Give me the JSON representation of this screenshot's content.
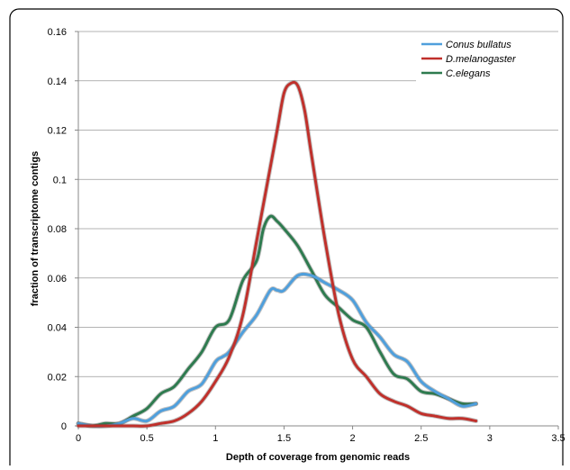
{
  "chart_data": {
    "type": "line",
    "title": "",
    "xlabel": "Depth of coverage from genomic reads",
    "ylabel": "fraction of  transcriptome contigs",
    "xlim": [
      0,
      3.5
    ],
    "ylim": [
      0,
      0.16
    ],
    "xticks": [
      "0",
      "0.5",
      "1",
      "1.5",
      "2",
      "2.5",
      "3",
      "3.5"
    ],
    "yticks": [
      "0",
      "0.02",
      "0.04",
      "0.06",
      "0.08",
      "0.1",
      "0.12",
      "0.14",
      "0.16"
    ],
    "grid": "horizontal",
    "legend_position": "top-right",
    "series": [
      {
        "name": "Conus bullatus",
        "color": "#4f9fdc",
        "x": [
          0,
          0.1,
          0.2,
          0.3,
          0.4,
          0.5,
          0.6,
          0.7,
          0.8,
          0.9,
          1.0,
          1.05,
          1.1,
          1.2,
          1.3,
          1.4,
          1.45,
          1.5,
          1.6,
          1.7,
          1.8,
          1.9,
          2.0,
          2.1,
          2.2,
          2.3,
          2.4,
          2.5,
          2.6,
          2.7,
          2.8,
          2.9
        ],
        "y": [
          0.001,
          0.0,
          0.0,
          0.001,
          0.003,
          0.002,
          0.006,
          0.008,
          0.014,
          0.017,
          0.026,
          0.028,
          0.03,
          0.038,
          0.045,
          0.055,
          0.055,
          0.055,
          0.061,
          0.061,
          0.058,
          0.055,
          0.051,
          0.042,
          0.036,
          0.029,
          0.026,
          0.018,
          0.014,
          0.011,
          0.008,
          0.009
        ]
      },
      {
        "name": "D.melanogaster",
        "color": "#c0302b",
        "x": [
          0,
          0.1,
          0.2,
          0.3,
          0.4,
          0.5,
          0.6,
          0.7,
          0.8,
          0.9,
          1.0,
          1.1,
          1.2,
          1.3,
          1.4,
          1.45,
          1.5,
          1.55,
          1.6,
          1.65,
          1.7,
          1.8,
          1.9,
          2.0,
          2.1,
          2.2,
          2.3,
          2.4,
          2.5,
          2.6,
          2.7,
          2.8,
          2.9
        ],
        "y": [
          0,
          0,
          0,
          0,
          0,
          0,
          0.001,
          0.002,
          0.005,
          0.01,
          0.018,
          0.028,
          0.045,
          0.075,
          0.105,
          0.12,
          0.135,
          0.139,
          0.138,
          0.128,
          0.11,
          0.075,
          0.045,
          0.027,
          0.02,
          0.013,
          0.01,
          0.008,
          0.005,
          0.004,
          0.003,
          0.003,
          0.002
        ]
      },
      {
        "name": "C.elegans",
        "color": "#2e7b4f",
        "x": [
          0,
          0.1,
          0.2,
          0.3,
          0.4,
          0.5,
          0.6,
          0.7,
          0.8,
          0.9,
          1.0,
          1.1,
          1.2,
          1.3,
          1.35,
          1.4,
          1.45,
          1.5,
          1.6,
          1.7,
          1.8,
          1.9,
          2.0,
          2.1,
          2.2,
          2.3,
          2.4,
          2.5,
          2.6,
          2.7,
          2.8,
          2.9
        ],
        "y": [
          0.001,
          0.0,
          0.001,
          0.001,
          0.004,
          0.007,
          0.013,
          0.016,
          0.023,
          0.03,
          0.04,
          0.043,
          0.059,
          0.067,
          0.08,
          0.085,
          0.083,
          0.08,
          0.073,
          0.063,
          0.053,
          0.048,
          0.043,
          0.04,
          0.03,
          0.021,
          0.019,
          0.014,
          0.013,
          0.011,
          0.009,
          0.009
        ]
      }
    ]
  }
}
